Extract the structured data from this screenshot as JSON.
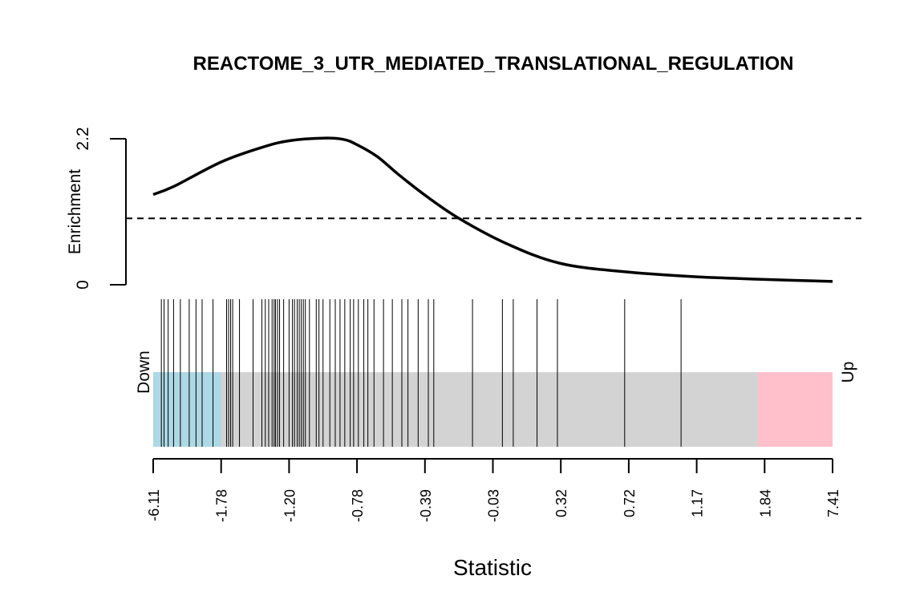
{
  "chart_data": {
    "type": "barcode",
    "title": "REACTOME_3_UTR_MEDIATED_TRANSLATIONAL_REGULATION",
    "xlabel": "Statistic",
    "enrichment": {
      "ylabel": "Enrichment",
      "yticks": [
        "0",
        "2.2"
      ],
      "ylim": [
        0,
        2.2
      ],
      "reference_line": 1.0,
      "reference_style": "dashed",
      "curve": {
        "x": [
          0,
          0.03,
          0.1,
          0.16,
          0.2,
          0.25,
          0.28,
          0.3,
          0.33,
          0.36,
          0.4,
          0.45,
          0.52,
          0.6,
          0.7,
          0.8,
          0.9,
          1.0
        ],
        "y": [
          1.36,
          1.48,
          1.85,
          2.07,
          2.17,
          2.21,
          2.19,
          2.11,
          1.93,
          1.67,
          1.35,
          1.0,
          0.62,
          0.32,
          0.19,
          0.12,
          0.08,
          0.05
        ]
      }
    },
    "barcode": {
      "left_label": "Down",
      "right_label": "Up",
      "colors": {
        "down": "#ADD8E6",
        "middle": "#D3D3D3",
        "up": "#FFC0CB"
      },
      "down_region_end": 0.1,
      "up_region_start": 0.89,
      "positions": [
        0.012,
        0.016,
        0.022,
        0.03,
        0.04,
        0.053,
        0.063,
        0.072,
        0.088,
        0.108,
        0.111,
        0.114,
        0.117,
        0.127,
        0.147,
        0.16,
        0.165,
        0.17,
        0.175,
        0.178,
        0.18,
        0.183,
        0.186,
        0.192,
        0.2,
        0.205,
        0.208,
        0.212,
        0.215,
        0.218,
        0.221,
        0.224,
        0.23,
        0.24,
        0.244,
        0.25,
        0.26,
        0.268,
        0.275,
        0.282,
        0.29,
        0.295,
        0.302,
        0.31,
        0.316,
        0.325,
        0.339,
        0.352,
        0.366,
        0.375,
        0.39,
        0.405,
        0.413,
        0.47,
        0.514,
        0.53,
        0.565,
        0.595,
        0.694,
        0.777
      ]
    },
    "xticks": [
      "-6.11",
      "-1.78",
      "-1.20",
      "-0.78",
      "-0.39",
      "-0.03",
      "0.32",
      "0.72",
      "1.17",
      "1.84",
      "7.41"
    ],
    "x_range": [
      -6.11,
      7.41
    ],
    "grid": false,
    "legend": "none"
  }
}
